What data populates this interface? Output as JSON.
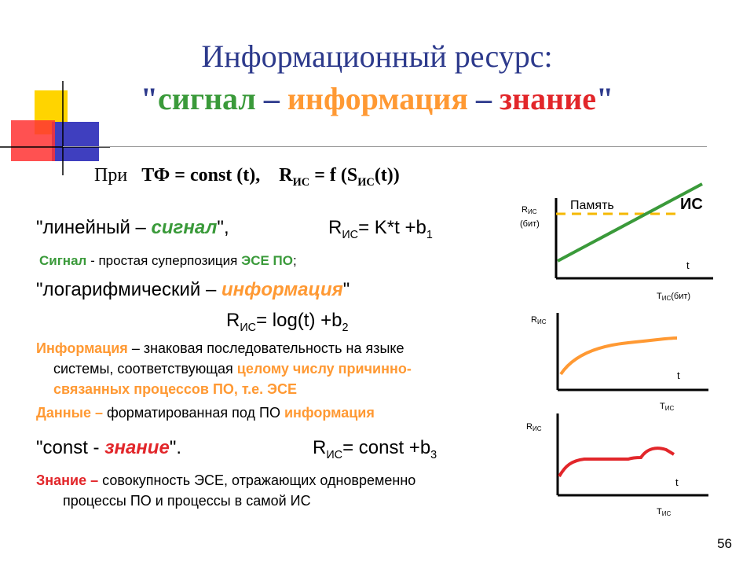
{
  "title": {
    "line1": "Информационный ресурс:",
    "q_open": "\"",
    "signal": "сигнал",
    "dash1": " – ",
    "info": "информация",
    "dash2": " – ",
    "knowledge": "знание",
    "q_close": "\""
  },
  "condition": {
    "prefix": "При",
    "tf": "ТФ = const (t),",
    "r": "R",
    "r_sub": "ИС",
    "eq": " = f (S",
    "s_sub": "ИС",
    "end": "(t))"
  },
  "linear": {
    "open": "\"линейный – ",
    "signal": "сигнал",
    "close": "\",",
    "r": "R",
    "r_sub": "ИС",
    "formula": "= K*t +b",
    "b_sub": "1"
  },
  "signal_def": {
    "term": "Сигнал",
    "text": " - простая суперпозиция ",
    "accent": "ЭСЕ ПО",
    "end": ";"
  },
  "log": {
    "open": "\"логарифмический – ",
    "info": "информация",
    "close": "\"",
    "r": "R",
    "r_sub": "ИС",
    "formula": "= log(t) +b",
    "b_sub": "2"
  },
  "info_def": {
    "term": "Информация",
    "text1": " – знаковая последовательность на языке",
    "text2": "системы, соответствующая ",
    "accent1": "целому числу причинно-",
    "accent2": "связанных процессов ПО, т.е. ЭСЕ"
  },
  "data_def": {
    "term": "Данные",
    "dash": " – ",
    "text": "форматированная под ПО ",
    "accent": "информация"
  },
  "const": {
    "open": "\"const - ",
    "knowledge": "знание",
    "close": "\".",
    "r": "R",
    "r_sub": "ИС",
    "formula": "= const +b",
    "b_sub": "3"
  },
  "knowledge_def": {
    "term": "Знание",
    "dash": " – ",
    "text1": "совокупность ЭСЕ, отражающих одновременно",
    "text2": "процессы ПО и процессы в самой  ИС"
  },
  "graph1": {
    "y_label": "R",
    "y_sub": "ИС",
    "y_unit": "(бит)",
    "memory": "Память",
    "is": "ИС",
    "t": "t",
    "x_label": "T",
    "x_sub": "ИС",
    "x_unit": "(бит)"
  },
  "graph2": {
    "y_label": "R",
    "y_sub": "ИС",
    "t": "t",
    "x_label": "T",
    "x_sub": "ИС"
  },
  "graph3": {
    "y_label": "R",
    "y_sub": "ИС",
    "t": "t",
    "x_label": "T",
    "x_sub": "ИС"
  },
  "colors": {
    "title": "#2d3a8c",
    "green": "#3a9a3a",
    "orange": "#ff9933",
    "red": "#e2262a",
    "dashed_line": "#f5b800",
    "deco_yellow": "#ffd400",
    "deco_blue": "#3f3fbf"
  },
  "page_number": "56"
}
